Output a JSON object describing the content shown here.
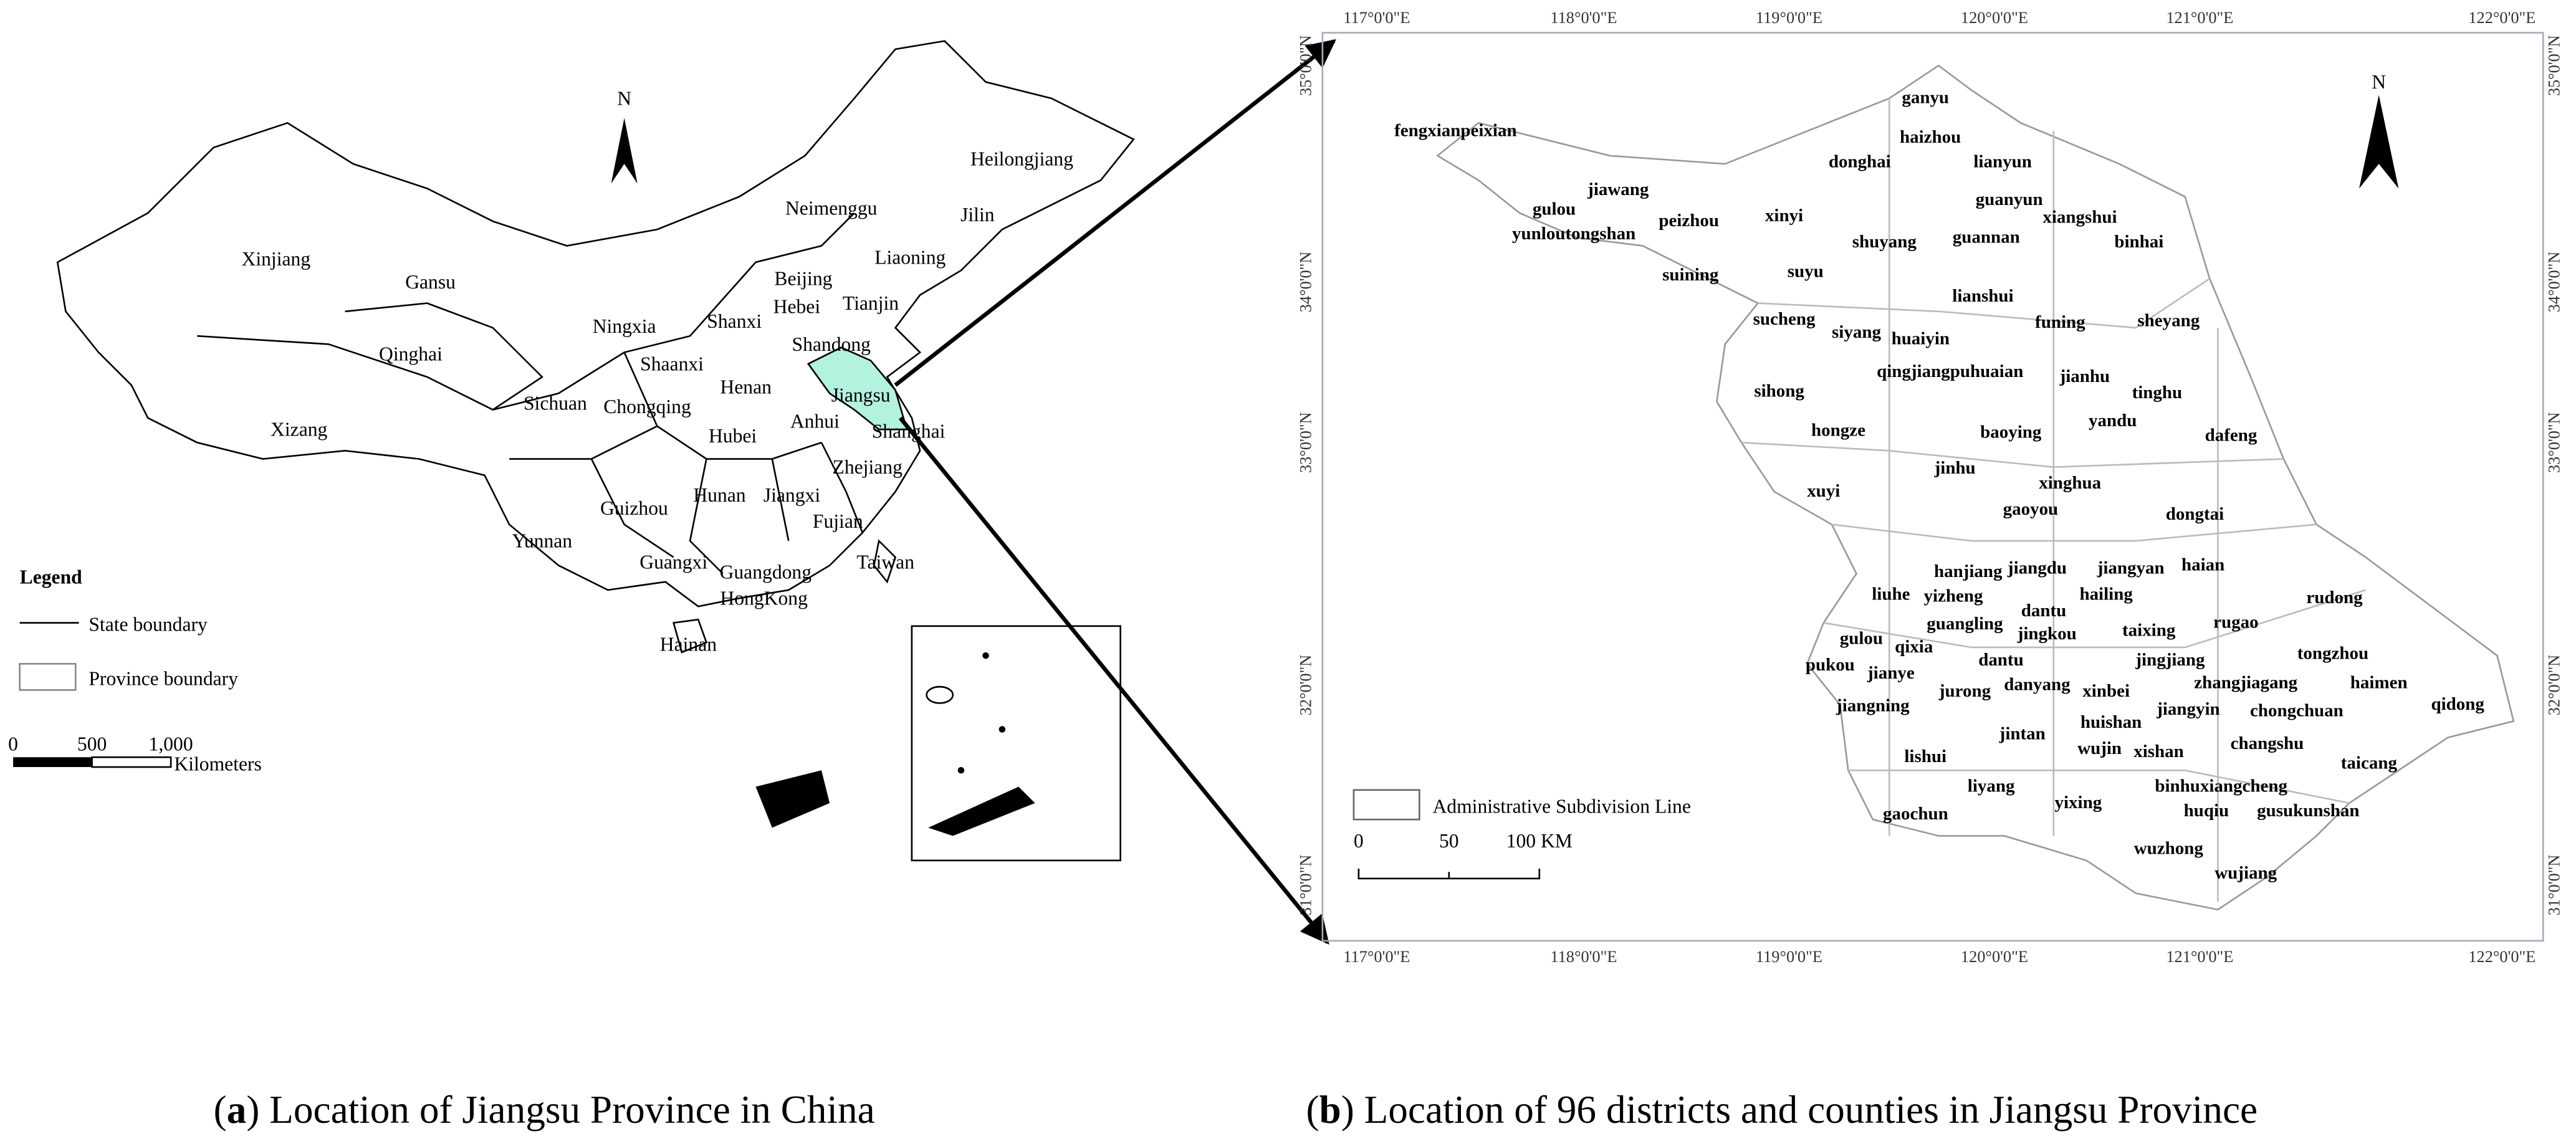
{
  "map_a": {
    "north": "N",
    "provinces": [
      "Xinjiang",
      "Gansu",
      "Qinghai",
      "Xizang",
      "Neimenggu",
      "Heilongjiang",
      "Jilin",
      "Liaoning",
      "Beijing",
      "Tianjin",
      "Hebei",
      "Ningxia",
      "Shanxi",
      "Shandong",
      "Shaanxi",
      "Henan",
      "Jiangsu",
      "Anhui",
      "Shanghai",
      "Sichuan",
      "Chongqing",
      "Hubei",
      "Zhejiang",
      "Hunan",
      "Jiangxi",
      "Yunnan",
      "Guizhou",
      "Fujian",
      "Guangxi",
      "Guangdong",
      "Taiwan",
      "HongKong",
      "Hainan"
    ],
    "legend": {
      "title": "Legend",
      "items": [
        "State boundary",
        "Province boundary"
      ]
    },
    "scale": {
      "ticks": [
        "0",
        "500",
        "1,000"
      ],
      "unit": "Kilometers"
    }
  },
  "map_b": {
    "north": "N",
    "districts": [
      "ganyu",
      "haizhou",
      "fengxianpeixian",
      "donghai",
      "lianyun",
      "jiawang",
      "gulou",
      "peizhou",
      "xinyi",
      "guanyun",
      "xiangshui",
      "yunloutongshan",
      "shuyang",
      "guannan",
      "binhai",
      "suining",
      "suyu",
      "lianshui",
      "funing",
      "sheyang",
      "sucheng",
      "siyang",
      "huaiyin",
      "qingjiangpuhuaian",
      "jianhu",
      "tinghu",
      "sihong",
      "hongze",
      "baoying",
      "yandu",
      "dafeng",
      "jinhu",
      "xinghua",
      "xuyi",
      "gaoyou",
      "dongtai",
      "hanjiang",
      "jiangdu",
      "jiangyan",
      "haian",
      "liuhe",
      "yizheng",
      "hailing",
      "rudong",
      "dantu",
      "guangling",
      "jingkou",
      "taixing",
      "rugao",
      "gulou",
      "qixia",
      "dantu",
      "jingjiang",
      "tongzhou",
      "pukou",
      "jianye",
      "danyang",
      "xinbei",
      "zhangjiagang",
      "haimen",
      "jurong",
      "qidong",
      "jiangning",
      "jiangyin",
      "chongchuan",
      "jintan",
      "huishan",
      "changshu",
      "wujin",
      "lishui",
      "xishan",
      "taicang",
      "liyang",
      "yixing",
      "binhuxiangcheng",
      "huqiu",
      "gusukunshan",
      "gaochun",
      "wuzhong",
      "wujiang"
    ],
    "legend": "Administrative Subdivision Line",
    "scale": {
      "ticks": [
        "0",
        "50",
        "100 KM"
      ]
    },
    "longitudes": [
      "117°0'0\"E",
      "118°0'0\"E",
      "119°0'0\"E",
      "120°0'0\"E",
      "121°0'0\"E",
      "122°0'0\"E"
    ],
    "latitudes": [
      "35°0'0\"N",
      "34°0'0\"N",
      "33°0'0\"N",
      "32°0'0\"N",
      "31°0'0\"N"
    ]
  },
  "captions": [
    {
      "open": "(",
      "letter": "a",
      "text": ") Location of Jiangsu Province in China"
    },
    {
      "open": "(",
      "letter": "b",
      "text": ") Location of 96 districts and counties in Jiangsu Province"
    }
  ]
}
